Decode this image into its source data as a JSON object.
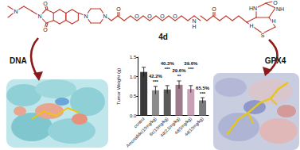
{
  "chart_data": {
    "type": "bar",
    "categories": [
      "control",
      "Amonafide(10mg/kg)",
      "8c(10mg/kg)",
      "4d(2.5mg/kg)",
      "4d(5mg/kg)",
      "4d(10mg/kg)"
    ],
    "values": [
      1.12,
      0.65,
      0.67,
      0.79,
      0.68,
      0.39
    ],
    "errors": [
      0.12,
      0.1,
      0.1,
      0.1,
      0.09,
      0.07
    ],
    "annotations": [
      null,
      "42.2%",
      "40.3%",
      "29.6%",
      "39.6%",
      "65.5%"
    ],
    "significance": [
      null,
      "***",
      "***",
      "**",
      "***",
      "***"
    ],
    "colors": [
      "#3a3a3a",
      "#8c8c8c",
      "#5a5a5a",
      "#9e7b8a",
      "#c9a0b6",
      "#7a7a7a"
    ],
    "ylabel": "Tumor Weight (g)",
    "ylim": [
      0,
      1.5
    ],
    "yticks": [
      {
        "value": 0,
        "label": "0.0"
      },
      0.5,
      {
        "value": 1,
        "label": "1.0"
      },
      1.5
    ],
    "grid": false
  },
  "diagram": {
    "compound": "4d",
    "targets": [
      "DNA",
      "GPX4"
    ],
    "atom_labels": [
      "N",
      "N",
      "O",
      "O",
      "N",
      "N",
      "O",
      "O",
      "O",
      "O",
      "O",
      "N",
      "H",
      "O",
      "HN",
      "NH",
      "O",
      "S",
      "H",
      "H"
    ]
  }
}
